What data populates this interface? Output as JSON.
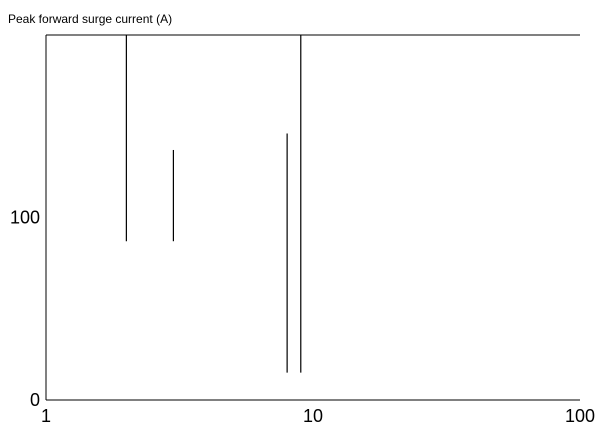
{
  "chart_data": {
    "type": "line",
    "title": "Peak forward surge current (A)",
    "xlabel": "",
    "ylabel": "",
    "x_scale": "log",
    "xlim": [
      1,
      100
    ],
    "ylim": [
      0,
      200
    ],
    "x_ticks": [
      {
        "value": 1,
        "label": "1"
      },
      {
        "value": 10,
        "label": "10"
      },
      {
        "value": 100,
        "label": "100"
      }
    ],
    "y_ticks": [
      {
        "value": 0,
        "label": "0"
      },
      {
        "value": 100,
        "label": "100"
      }
    ],
    "grid": false,
    "series": [
      {
        "x": [
          2,
          2
        ],
        "y": [
          87,
          200
        ]
      },
      {
        "x": [
          3,
          3
        ],
        "y": [
          87,
          137
        ]
      },
      {
        "x": [
          8,
          8
        ],
        "y": [
          15,
          146
        ]
      },
      {
        "x": [
          9,
          9
        ],
        "y": [
          15,
          200
        ]
      }
    ],
    "colors": {
      "line": "#000000",
      "axis": "#000000",
      "background": "#ffffff"
    }
  }
}
